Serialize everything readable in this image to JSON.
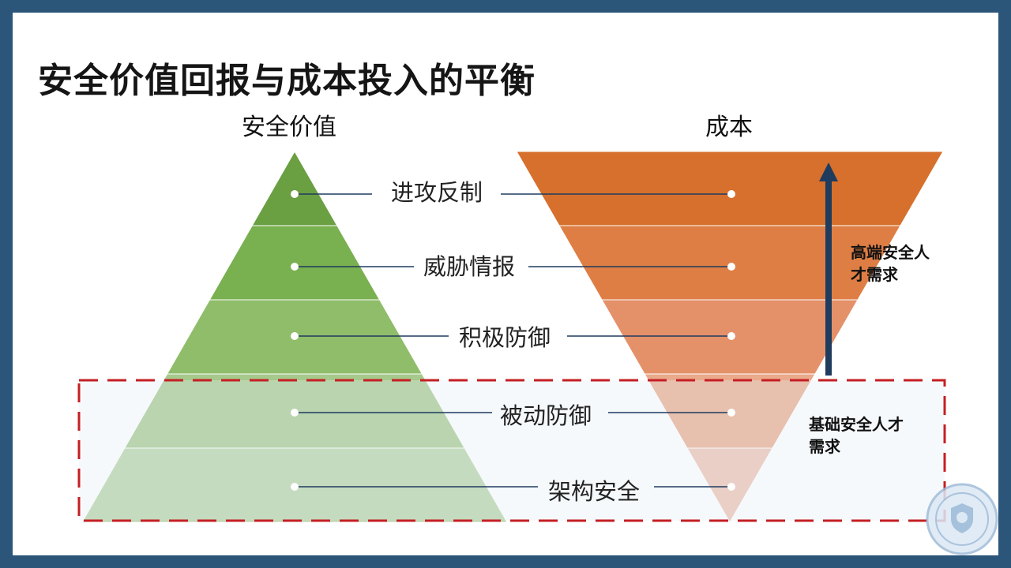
{
  "slide": {
    "title": "安全价值回报与成本投入的平衡"
  },
  "columns": {
    "value_heading": "安全价值",
    "cost_heading": "成本"
  },
  "layers": [
    {
      "label": "进攻反制",
      "value_color": "#6a9f42",
      "cost_color": "#d6702c"
    },
    {
      "label": "威胁情报",
      "value_color": "#79b050",
      "cost_color": "#de7e44"
    },
    {
      "label": "积极防御",
      "value_color": "#8fbd6a",
      "cost_color": "#e4916a"
    },
    {
      "label": "被动防御",
      "value_color": "#a6c98c",
      "cost_color": "#e9ab8c"
    },
    {
      "label": "架构安全",
      "value_color": "#b7d3a5",
      "cost_color": "#eec1b0"
    }
  ],
  "notes": {
    "high_end": "高端安全人\n才需求",
    "basic": "基础安全人才\n需求"
  },
  "colors": {
    "frame": "#2b5579",
    "arrow": "#1f3b5e",
    "dashed_box": "#c41f24",
    "connector": "#1f3b5e"
  }
}
